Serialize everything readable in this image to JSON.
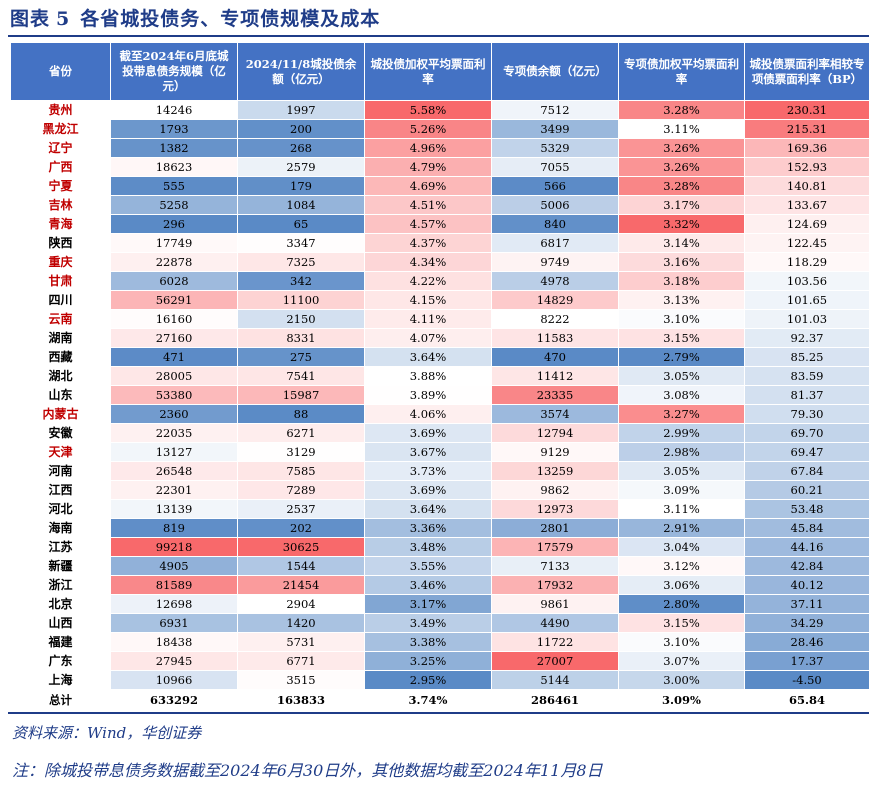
{
  "title": {
    "label": "图表",
    "number": "5",
    "text": "各省城投债务、专项债规模及成本"
  },
  "headers": [
    "省份",
    "截至2024年6月底城投带息债务规模（亿元）",
    "2024/11/8城投债余额（亿元）",
    "城投债加权平均票面利率",
    "专项债余额（亿元）",
    "专项债加权平均票面利率",
    "城投债票面利率相较专项债票面利率（BP）"
  ],
  "colors": {
    "header_bg": "#4472c4",
    "title": "#1f3c88",
    "red_name": "#c00000",
    "high": "#f8696b",
    "mid": "#ffffff",
    "low": "#5a8ac6"
  },
  "rows": [
    {
      "province": "贵州",
      "red": true,
      "debt": "14246",
      "bond": "1997",
      "rate": "5.58%",
      "special": "7512",
      "srate": "3.28%",
      "spread": "230.31"
    },
    {
      "province": "黑龙江",
      "red": true,
      "debt": "1793",
      "bond": "200",
      "rate": "5.26%",
      "special": "3499",
      "srate": "3.11%",
      "spread": "215.31"
    },
    {
      "province": "辽宁",
      "red": true,
      "debt": "1382",
      "bond": "268",
      "rate": "4.96%",
      "special": "5329",
      "srate": "3.26%",
      "spread": "169.36"
    },
    {
      "province": "广西",
      "red": true,
      "debt": "18623",
      "bond": "2579",
      "rate": "4.79%",
      "special": "7055",
      "srate": "3.26%",
      "spread": "152.93"
    },
    {
      "province": "宁夏",
      "red": true,
      "debt": "555",
      "bond": "179",
      "rate": "4.69%",
      "special": "566",
      "srate": "3.28%",
      "spread": "140.81"
    },
    {
      "province": "吉林",
      "red": true,
      "debt": "5258",
      "bond": "1084",
      "rate": "4.51%",
      "special": "5006",
      "srate": "3.17%",
      "spread": "133.67"
    },
    {
      "province": "青海",
      "red": true,
      "debt": "296",
      "bond": "65",
      "rate": "4.57%",
      "special": "840",
      "srate": "3.32%",
      "spread": "124.69"
    },
    {
      "province": "陕西",
      "red": false,
      "debt": "17749",
      "bond": "3347",
      "rate": "4.37%",
      "special": "6817",
      "srate": "3.14%",
      "spread": "122.45"
    },
    {
      "province": "重庆",
      "red": true,
      "debt": "22878",
      "bond": "7325",
      "rate": "4.34%",
      "special": "9749",
      "srate": "3.16%",
      "spread": "118.29"
    },
    {
      "province": "甘肃",
      "red": true,
      "debt": "6028",
      "bond": "342",
      "rate": "4.22%",
      "special": "4978",
      "srate": "3.18%",
      "spread": "103.56"
    },
    {
      "province": "四川",
      "red": false,
      "debt": "56291",
      "bond": "11100",
      "rate": "4.15%",
      "special": "14829",
      "srate": "3.13%",
      "spread": "101.65"
    },
    {
      "province": "云南",
      "red": true,
      "debt": "16160",
      "bond": "2150",
      "rate": "4.11%",
      "special": "8222",
      "srate": "3.10%",
      "spread": "101.03"
    },
    {
      "province": "湖南",
      "red": false,
      "debt": "27160",
      "bond": "8331",
      "rate": "4.07%",
      "special": "11583",
      "srate": "3.15%",
      "spread": "92.37"
    },
    {
      "province": "西藏",
      "red": false,
      "debt": "471",
      "bond": "275",
      "rate": "3.64%",
      "special": "470",
      "srate": "2.79%",
      "spread": "85.25"
    },
    {
      "province": "湖北",
      "red": false,
      "debt": "28005",
      "bond": "7541",
      "rate": "3.88%",
      "special": "11412",
      "srate": "3.05%",
      "spread": "83.59"
    },
    {
      "province": "山东",
      "red": false,
      "debt": "53380",
      "bond": "15987",
      "rate": "3.89%",
      "special": "23335",
      "srate": "3.08%",
      "spread": "81.37"
    },
    {
      "province": "内蒙古",
      "red": true,
      "debt": "2360",
      "bond": "88",
      "rate": "4.06%",
      "special": "3574",
      "srate": "3.27%",
      "spread": "79.30"
    },
    {
      "province": "安徽",
      "red": false,
      "debt": "22035",
      "bond": "6271",
      "rate": "3.69%",
      "special": "12794",
      "srate": "2.99%",
      "spread": "69.70"
    },
    {
      "province": "天津",
      "red": true,
      "debt": "13127",
      "bond": "3129",
      "rate": "3.67%",
      "special": "9129",
      "srate": "2.98%",
      "spread": "69.47"
    },
    {
      "province": "河南",
      "red": false,
      "debt": "26548",
      "bond": "7585",
      "rate": "3.73%",
      "special": "13259",
      "srate": "3.05%",
      "spread": "67.84"
    },
    {
      "province": "江西",
      "red": false,
      "debt": "22301",
      "bond": "7289",
      "rate": "3.69%",
      "special": "9862",
      "srate": "3.09%",
      "spread": "60.21"
    },
    {
      "province": "河北",
      "red": false,
      "debt": "13139",
      "bond": "2537",
      "rate": "3.64%",
      "special": "12973",
      "srate": "3.11%",
      "spread": "53.48"
    },
    {
      "province": "海南",
      "red": false,
      "debt": "819",
      "bond": "202",
      "rate": "3.36%",
      "special": "2801",
      "srate": "2.91%",
      "spread": "45.84"
    },
    {
      "province": "江苏",
      "red": false,
      "debt": "99218",
      "bond": "30625",
      "rate": "3.48%",
      "special": "17579",
      "srate": "3.04%",
      "spread": "44.16"
    },
    {
      "province": "新疆",
      "red": false,
      "debt": "4905",
      "bond": "1544",
      "rate": "3.55%",
      "special": "7133",
      "srate": "3.12%",
      "spread": "42.84"
    },
    {
      "province": "浙江",
      "red": false,
      "debt": "81589",
      "bond": "21454",
      "rate": "3.46%",
      "special": "17932",
      "srate": "3.06%",
      "spread": "40.12"
    },
    {
      "province": "北京",
      "red": false,
      "debt": "12698",
      "bond": "2904",
      "rate": "3.17%",
      "special": "9861",
      "srate": "2.80%",
      "spread": "37.11"
    },
    {
      "province": "山西",
      "red": false,
      "debt": "6931",
      "bond": "1420",
      "rate": "3.49%",
      "special": "4490",
      "srate": "3.15%",
      "spread": "34.29"
    },
    {
      "province": "福建",
      "red": false,
      "debt": "18438",
      "bond": "5731",
      "rate": "3.38%",
      "special": "11722",
      "srate": "3.10%",
      "spread": "28.46"
    },
    {
      "province": "广东",
      "red": false,
      "debt": "27945",
      "bond": "6771",
      "rate": "3.25%",
      "special": "27007",
      "srate": "3.07%",
      "spread": "17.37"
    },
    {
      "province": "上海",
      "red": false,
      "debt": "10966",
      "bond": "3515",
      "rate": "2.95%",
      "special": "5144",
      "srate": "3.00%",
      "spread": "-4.50"
    }
  ],
  "total": {
    "province": "总计",
    "debt": "633292",
    "bond": "163833",
    "rate": "3.74%",
    "special": "286461",
    "srate": "3.09%",
    "spread": "65.84"
  },
  "source": "资料来源：Wind，华创证券",
  "footnote": "注：除城投带息债务数据截至2024年6月30日外，其他数据均截至2024年11月8日"
}
